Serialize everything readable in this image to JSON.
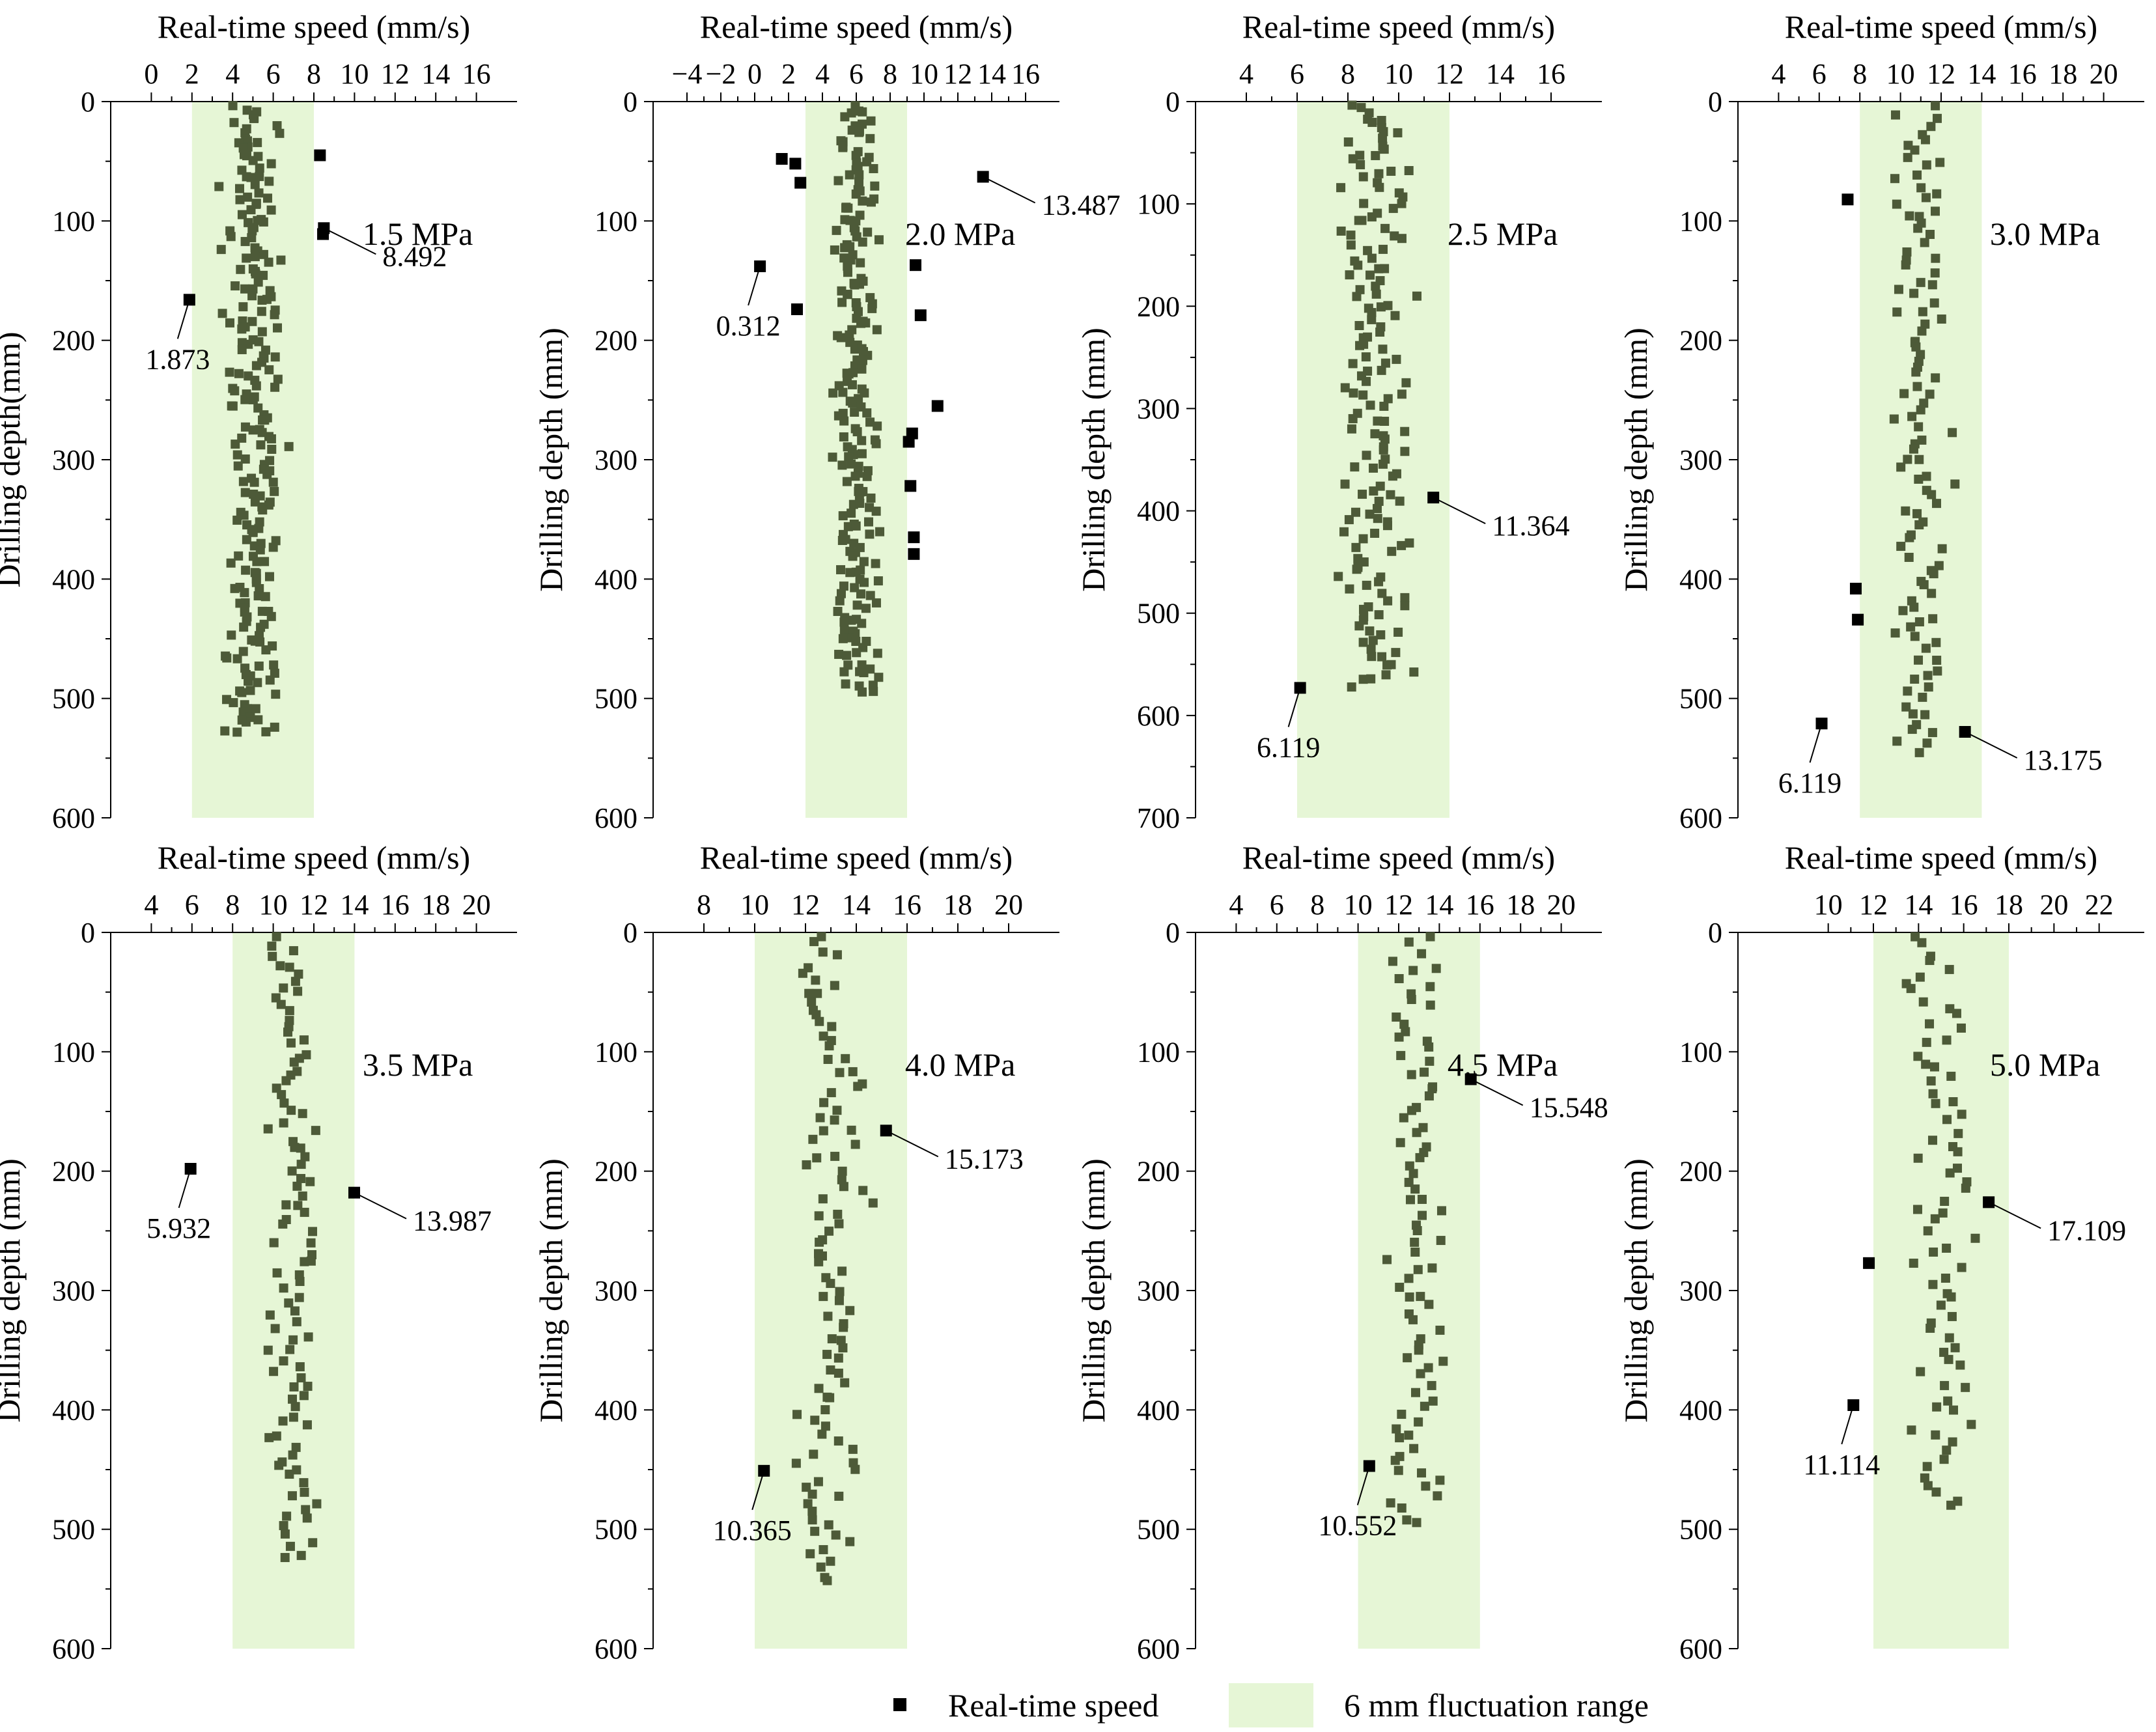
{
  "legend": {
    "point_label": "Real-time speed",
    "band_label": "6 mm fluctuation range"
  },
  "colors": {
    "band": "#e6f6d6",
    "point_in": "#4d5a38",
    "point_out": "#000000",
    "axis": "#000000"
  },
  "chart_data": [
    {
      "type": "scatter",
      "panel_label": "1.5 MPa",
      "xlabel": "Real-time speed (mm/s)",
      "ylabel": "Drilling depth(mm)",
      "xlim": [
        -2,
        18
      ],
      "xticks": [
        0,
        2,
        4,
        6,
        8,
        10,
        12,
        14,
        16
      ],
      "ylim": [
        0,
        600
      ],
      "yticks": [
        0,
        100,
        200,
        300,
        400,
        500,
        600
      ],
      "band": [
        2,
        8
      ],
      "n_in": 230,
      "depth_max": 530,
      "in_seed": 11,
      "outliers": [
        {
          "x": 1.873,
          "y": 166,
          "label": "1.873"
        },
        {
          "x": 8.492,
          "y": 106,
          "label": "8.492"
        },
        {
          "x": 8.45,
          "y": 111
        },
        {
          "x": 8.3,
          "y": 45
        }
      ]
    },
    {
      "type": "scatter",
      "panel_label": "2.0 MPa",
      "xlabel": "Real-time speed (mm/s)",
      "ylabel": "Drilling depth (mm)",
      "xlim": [
        -6,
        18
      ],
      "xticks": [
        -4,
        -2,
        0,
        2,
        4,
        6,
        8,
        10,
        12,
        14,
        16
      ],
      "ylim": [
        0,
        600
      ],
      "yticks": [
        0,
        100,
        200,
        300,
        400,
        500,
        600
      ],
      "band": [
        3,
        9
      ],
      "n_in": 210,
      "depth_max": 495,
      "in_seed": 23,
      "outliers": [
        {
          "x": 0.312,
          "y": 138,
          "label": "0.312"
        },
        {
          "x": 13.487,
          "y": 63,
          "label": "13.487"
        },
        {
          "x": 1.6,
          "y": 48
        },
        {
          "x": 2.4,
          "y": 52
        },
        {
          "x": 2.7,
          "y": 68
        },
        {
          "x": 2.5,
          "y": 174
        },
        {
          "x": 9.5,
          "y": 137
        },
        {
          "x": 9.8,
          "y": 179
        },
        {
          "x": 10.8,
          "y": 255
        },
        {
          "x": 9.3,
          "y": 278
        },
        {
          "x": 9.1,
          "y": 285
        },
        {
          "x": 9.2,
          "y": 322
        },
        {
          "x": 9.4,
          "y": 365
        },
        {
          "x": 9.4,
          "y": 379
        }
      ]
    },
    {
      "type": "scatter",
      "panel_label": "2.5 MPa",
      "xlabel": "Real-time speed (mm/s)",
      "ylabel": "Drilling depth (mm)",
      "xlim": [
        2,
        18
      ],
      "xticks": [
        4,
        6,
        8,
        10,
        12,
        14,
        16
      ],
      "ylim": [
        0,
        700
      ],
      "yticks": [
        0,
        100,
        200,
        300,
        400,
        500,
        600,
        700
      ],
      "band": [
        6,
        12
      ],
      "n_in": 160,
      "depth_max": 570,
      "in_seed": 37,
      "outliers": [
        {
          "x": 6.119,
          "y": 573,
          "label": "6.119"
        },
        {
          "x": 11.364,
          "y": 387,
          "label": "11.364"
        }
      ]
    },
    {
      "type": "scatter",
      "panel_label": "3.0 MPa",
      "xlabel": "Real-time speed (mm/s)",
      "ylabel": "Drilling depth (mm)",
      "xlim": [
        2,
        22
      ],
      "xticks": [
        4,
        6,
        8,
        10,
        12,
        14,
        16,
        18,
        20
      ],
      "ylim": [
        0,
        600
      ],
      "yticks": [
        0,
        100,
        200,
        300,
        400,
        500,
        600
      ],
      "band": [
        8,
        14
      ],
      "n_in": 110,
      "depth_max": 545,
      "in_seed": 41,
      "outliers": [
        {
          "x": 6.119,
          "y": 521,
          "label": "6.119"
        },
        {
          "x": 13.175,
          "y": 528,
          "label": "13.175"
        },
        {
          "x": 7.4,
          "y": 82
        },
        {
          "x": 7.8,
          "y": 408
        },
        {
          "x": 7.9,
          "y": 434
        }
      ]
    },
    {
      "type": "scatter",
      "panel_label": "3.5 MPa",
      "xlabel": "Real-time speed (mm/s)",
      "ylabel": "Drilling depth (mm)",
      "xlim": [
        2,
        22
      ],
      "xticks": [
        4,
        6,
        8,
        10,
        12,
        14,
        16,
        18,
        20
      ],
      "ylim": [
        0,
        600
      ],
      "yticks": [
        0,
        100,
        200,
        300,
        400,
        500,
        600
      ],
      "band": [
        8,
        14
      ],
      "n_in": 100,
      "depth_max": 525,
      "in_seed": 53,
      "outliers": [
        {
          "x": 5.932,
          "y": 198,
          "label": "5.932"
        },
        {
          "x": 13.987,
          "y": 218,
          "label": "13.987"
        }
      ]
    },
    {
      "type": "scatter",
      "panel_label": "4.0 MPa",
      "xlabel": "Real-time speed (mm/s)",
      "ylabel": "Drilling depth (mm)",
      "xlim": [
        6,
        22
      ],
      "xticks": [
        8,
        10,
        12,
        14,
        16,
        18,
        20
      ],
      "ylim": [
        0,
        600
      ],
      "yticks": [
        0,
        100,
        200,
        300,
        400,
        500,
        600
      ],
      "band": [
        10,
        16
      ],
      "n_in": 100,
      "depth_max": 545,
      "in_seed": 67,
      "outliers": [
        {
          "x": 10.365,
          "y": 451,
          "label": "10.365"
        },
        {
          "x": 15.173,
          "y": 166,
          "label": "15.173"
        }
      ]
    },
    {
      "type": "scatter",
      "panel_label": "4.5 MPa",
      "xlabel": "Real-time speed (mm/s)",
      "ylabel": "Drilling depth (mm)",
      "xlim": [
        2,
        22
      ],
      "xticks": [
        4,
        6,
        8,
        10,
        12,
        14,
        16,
        18,
        20
      ],
      "ylim": [
        0,
        600
      ],
      "yticks": [
        0,
        100,
        200,
        300,
        400,
        500,
        600
      ],
      "band": [
        10,
        16
      ],
      "n_in": 85,
      "depth_max": 495,
      "in_seed": 79,
      "outliers": [
        {
          "x": 10.552,
          "y": 447,
          "label": "10.552"
        },
        {
          "x": 15.548,
          "y": 123,
          "label": "15.548"
        }
      ]
    },
    {
      "type": "scatter",
      "panel_label": "5.0 MPa",
      "xlabel": "Real-time speed (mm/s)",
      "ylabel": "Drilling depth (mm)",
      "xlim": [
        6,
        24
      ],
      "xticks": [
        10,
        12,
        14,
        16,
        18,
        20,
        22
      ],
      "ylim": [
        0,
        600
      ],
      "yticks": [
        0,
        100,
        200,
        300,
        400,
        500,
        600
      ],
      "band": [
        12,
        18
      ],
      "n_in": 75,
      "depth_max": 480,
      "in_seed": 97,
      "outliers": [
        {
          "x": 11.114,
          "y": 396,
          "label": "11.114"
        },
        {
          "x": 17.109,
          "y": 226,
          "label": "17.109"
        },
        {
          "x": 11.8,
          "y": 277
        }
      ]
    }
  ]
}
